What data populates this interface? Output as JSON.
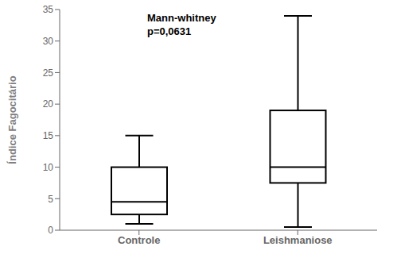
{
  "chart_data": {
    "type": "box",
    "categories": [
      "Controle",
      "Leishmaniose"
    ],
    "boxes": [
      {
        "whislo": 1.0,
        "q1": 2.5,
        "med": 4.5,
        "q3": 10.0,
        "whishi": 15.0
      },
      {
        "whislo": 0.5,
        "q1": 7.5,
        "med": 10.0,
        "q3": 19.0,
        "whishi": 34.0
      }
    ],
    "ylabel": "Índice Fagocitário",
    "annotations": [
      "Mann-whitney",
      "p=0,0631"
    ],
    "ylim": [
      0,
      35
    ],
    "yticks": [
      0,
      5,
      10,
      15,
      20,
      25,
      30,
      35
    ],
    "color": "#000000",
    "grid": false
  }
}
